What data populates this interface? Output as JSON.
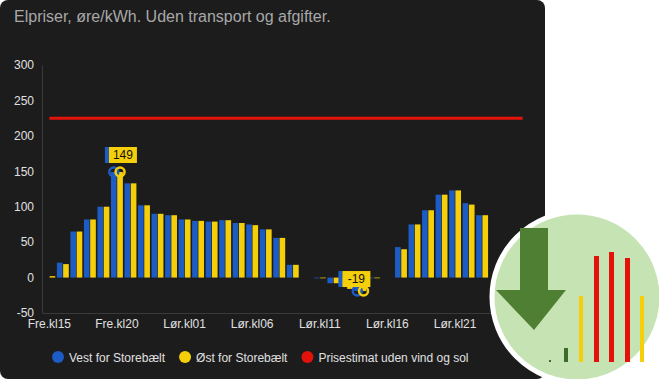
{
  "chart_data": {
    "type": "bar",
    "title": "Elpriser, øre/kWh. Uden transport og afgifter.",
    "categories": [
      "Fre.kl15",
      null,
      null,
      null,
      null,
      "Fre.kl20",
      null,
      null,
      null,
      null,
      "Lør.kl01",
      null,
      null,
      null,
      null,
      "Lør.kl06",
      null,
      null,
      null,
      null,
      "Lør.kl11",
      null,
      null,
      null,
      null,
      "Lør.kl16",
      null,
      null,
      null,
      null,
      "Lør.kl21",
      null,
      null,
      null,
      null,
      null
    ],
    "series": [
      {
        "name": "Vest for Storebælt",
        "color": "#1c5cc4",
        "type": "bar",
        "values": [
          0,
          21,
          65,
          82,
          100,
          149,
          133,
          102,
          90,
          88,
          82,
          80,
          79,
          81,
          77,
          75,
          68,
          56,
          18,
          0,
          -1,
          -8,
          -12,
          -19,
          -1,
          0,
          43,
          75,
          95,
          117,
          123,
          105,
          88,
          null,
          null,
          null
        ]
      },
      {
        "name": "Øst for Storebælt",
        "color": "#f5cf0a",
        "type": "bar",
        "values": [
          2,
          19,
          65,
          82,
          100,
          149,
          133,
          102,
          90,
          88,
          82,
          80,
          79,
          81,
          77,
          74,
          68,
          56,
          18,
          0,
          -1,
          -8,
          -16,
          -19,
          -1,
          0,
          40,
          75,
          95,
          117,
          123,
          103,
          88,
          null,
          null,
          null
        ]
      },
      {
        "name": "Prisestimat uden vind og sol",
        "color": "#e3120b",
        "type": "line",
        "values": [
          225,
          225,
          225,
          225,
          225,
          225,
          225,
          225,
          225,
          225,
          225,
          225,
          225,
          225,
          225,
          225,
          225,
          225,
          225,
          225,
          225,
          225,
          225,
          225,
          225,
          225,
          225,
          225,
          225,
          225,
          225,
          225,
          225,
          225,
          225,
          225
        ]
      }
    ],
    "annotations": [
      {
        "text": "149",
        "index": 5,
        "value": 149
      },
      {
        "text": "-19",
        "index": 23,
        "value": -19
      }
    ],
    "ylim": [
      -50,
      300
    ],
    "yticks": [
      -50,
      0,
      50,
      100,
      150,
      200,
      250,
      300
    ],
    "grid": false,
    "legend": "bottom"
  }
}
